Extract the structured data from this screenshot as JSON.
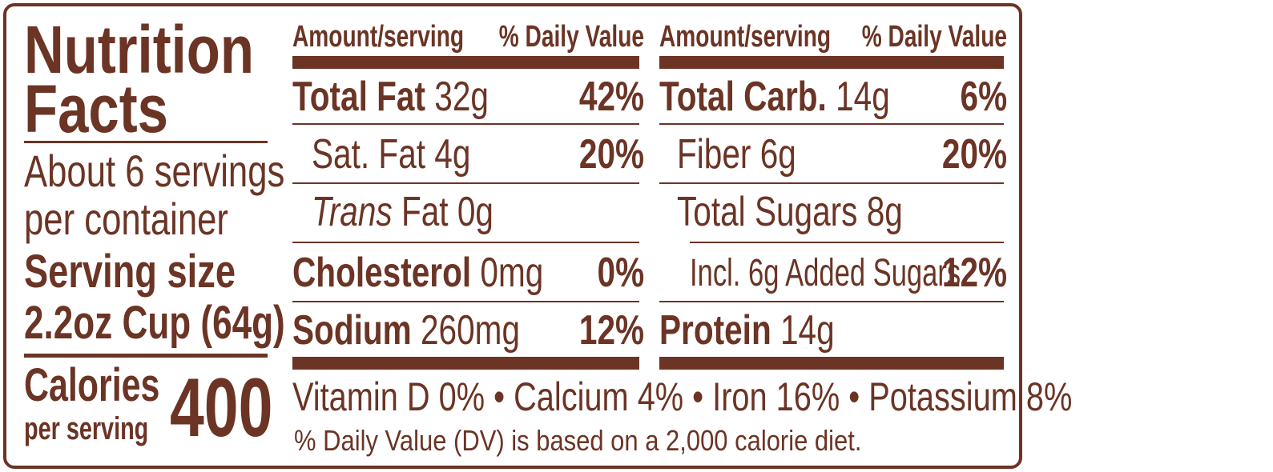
{
  "title_line1": "Nutrition",
  "title_line2": "Facts",
  "servings_line1": "About 6 servings",
  "servings_line2": "per container",
  "serving_size_label": "Serving size",
  "serving_size_value": "2.2oz Cup (64g)",
  "calories_label": "Calories",
  "calories_sub": "per serving",
  "calories_value": "400",
  "header": {
    "amount": "Amount/serving",
    "dv": "% Daily Value"
  },
  "left_col": {
    "total_fat": {
      "label": "Total Fat",
      "amount": "32g",
      "dv": "42%"
    },
    "sat_fat": {
      "label": "Sat. Fat",
      "amount": "4g",
      "dv": "20%"
    },
    "trans_fat": {
      "label_italic": "Trans",
      "label": "Fat",
      "amount": "0g"
    },
    "cholesterol": {
      "label": "Cholesterol",
      "amount": "0mg",
      "dv": "0%"
    },
    "sodium": {
      "label": "Sodium",
      "amount": "260mg",
      "dv": "12%"
    }
  },
  "right_col": {
    "total_carb": {
      "label": "Total Carb.",
      "amount": "14g",
      "dv": "6%"
    },
    "fiber": {
      "label": "Fiber",
      "amount": "6g",
      "dv": "20%"
    },
    "total_sugars": {
      "label": "Total Sugars",
      "amount": "8g"
    },
    "added_sugars": {
      "label": "Incl. 6g Added Sugars",
      "dv": "12%"
    },
    "protein": {
      "label": "Protein",
      "amount": "14g"
    }
  },
  "micronutrients": "Vitamin D 0% • Calcium 4% • Iron 16% • Potassium 8%",
  "footnote": "% Daily Value (DV) is based on a 2,000 calorie diet.",
  "colors": {
    "ink": "#6b3425",
    "background": "#ffffff"
  }
}
